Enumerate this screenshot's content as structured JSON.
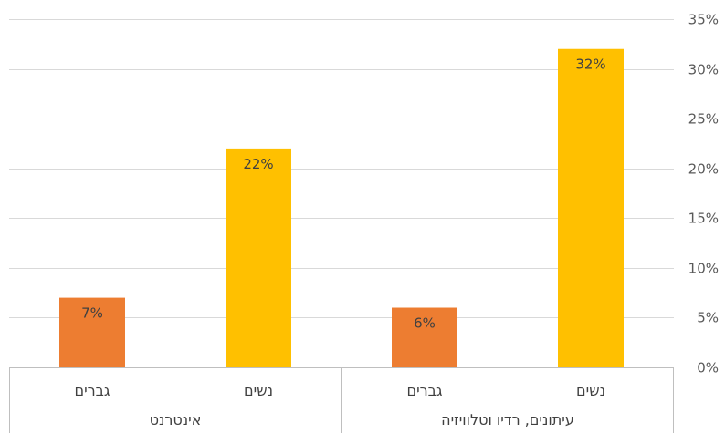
{
  "chart_data": {
    "type": "bar",
    "groups": [
      {
        "label": "אינטרנט",
        "categories": [
          "גברים",
          "נשים"
        ],
        "values": [
          7,
          22
        ],
        "value_labels": [
          "7%",
          "22%"
        ],
        "colors": [
          "#ED7D31",
          "#FFC000"
        ]
      },
      {
        "label": "עיתונים, רדיו וטלוויזיה",
        "categories": [
          "גברים",
          "נשים"
        ],
        "values": [
          6,
          32
        ],
        "value_labels": [
          "6%",
          "32%"
        ],
        "colors": [
          "#ED7D31",
          "#FFC000"
        ]
      }
    ],
    "y_ticks": [
      "0%",
      "5%",
      "10%",
      "15%",
      "20%",
      "25%",
      "30%",
      "35%"
    ],
    "ylim": [
      0,
      35
    ],
    "y_axis_side": "right",
    "grid": true
  }
}
